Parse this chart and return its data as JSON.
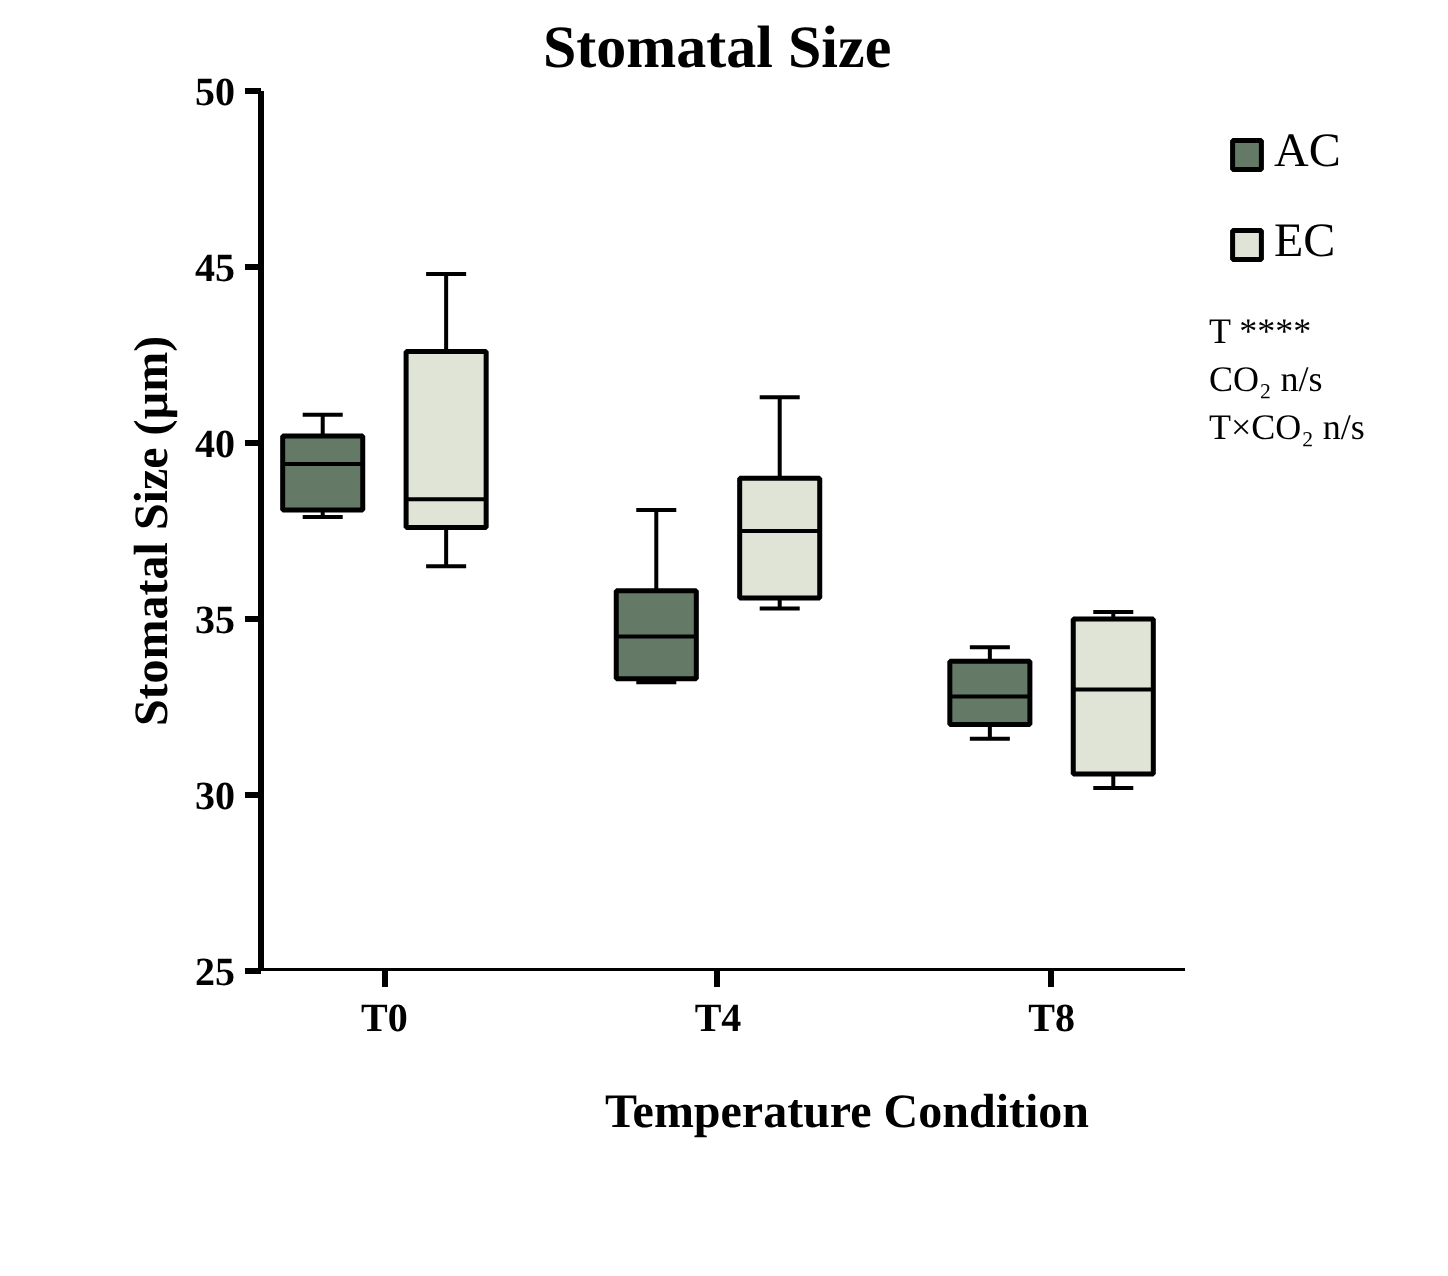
{
  "chart_data": {
    "type": "box",
    "title": "Stomatal Size",
    "xlabel": "Temperature Condition",
    "ylabel": "Stomatal Size (µm)",
    "categories": [
      "T0",
      "T4",
      "T8"
    ],
    "series": [
      {
        "name": "AC",
        "color": "#657a66",
        "boxes": [
          {
            "low": 37.9,
            "q1": 38.1,
            "median": 39.4,
            "q3": 40.2,
            "high": 40.8
          },
          {
            "low": 33.2,
            "q1": 33.3,
            "median": 34.5,
            "q3": 35.8,
            "high": 38.1
          },
          {
            "low": 31.6,
            "q1": 32.0,
            "median": 32.8,
            "q3": 33.8,
            "high": 34.2
          }
        ]
      },
      {
        "name": "EC",
        "color": "#dfe4d6",
        "boxes": [
          {
            "low": 36.5,
            "q1": 37.6,
            "median": 38.4,
            "q3": 42.6,
            "high": 44.8
          },
          {
            "low": 35.3,
            "q1": 35.6,
            "median": 37.5,
            "q3": 39.0,
            "high": 41.3
          },
          {
            "low": 30.2,
            "q1": 30.6,
            "median": 33.0,
            "q3": 35.0,
            "high": 35.2
          }
        ]
      }
    ],
    "ylim": [
      25,
      50
    ],
    "yticks": [
      25,
      30,
      35,
      40,
      45,
      50
    ],
    "grid": false,
    "legend": "top right",
    "annotations": [
      "T ****",
      "CO₂ n/s",
      "T×CO₂ n/s"
    ]
  }
}
